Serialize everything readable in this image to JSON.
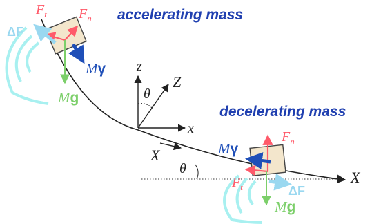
{
  "titles": {
    "accelerating": "accelerating mass",
    "decelerating": "decelerating mass"
  },
  "labels": {
    "ft": "F",
    "ft_sub": "t",
    "fn": "F",
    "fn_sub": "n",
    "delta_f": "ΔF",
    "mg_m": "M",
    "mg_g": "g",
    "mgamma_m": "M",
    "mgamma_gamma": "γ",
    "axis_z": "z",
    "axis_x": "x",
    "axis_Z": "Z",
    "axis_X": "X",
    "theta": "θ"
  },
  "colors": {
    "title_blue": "#1f3fb0",
    "red_force": "#ff5a6a",
    "green_force": "#7ccf6a",
    "blue_force": "#1f4fb8",
    "cyan_wave": "#a8f0f0",
    "cyan_delta": "#9ad8f0",
    "block_fill": "#f3e6cc",
    "ink": "#222222"
  }
}
